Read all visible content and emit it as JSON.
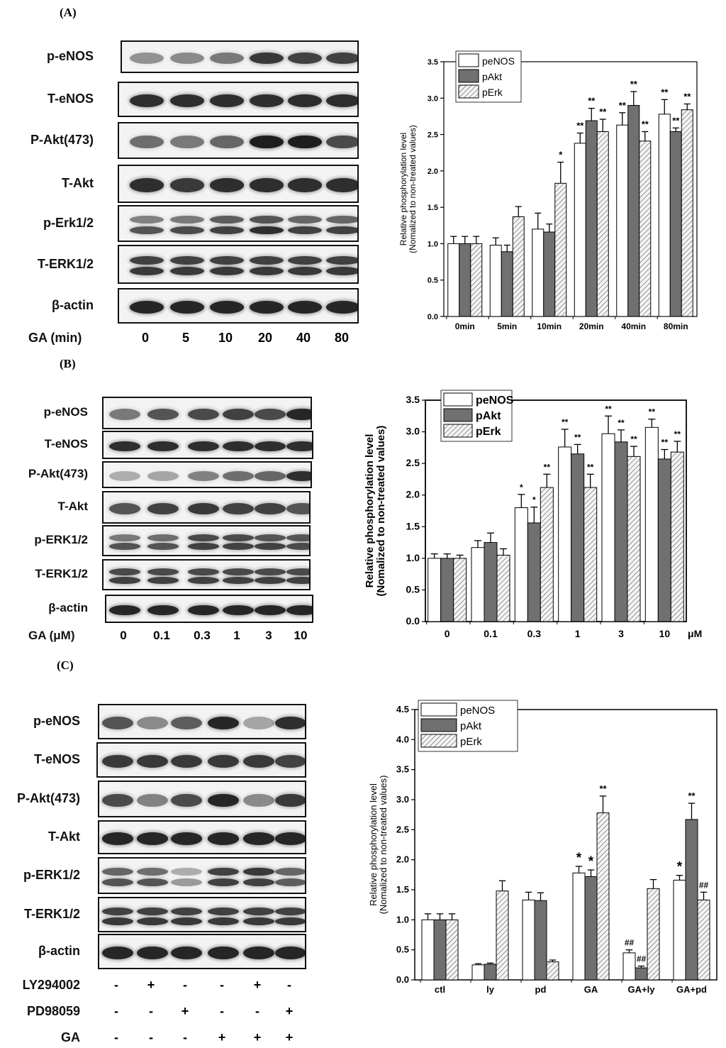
{
  "panels": {
    "A": {
      "label": "(A)",
      "blot_labels": [
        "p-eNOS",
        "T-eNOS",
        "P-Akt(473)",
        "T-Akt",
        "p-Erk1/2",
        "T-ERK1/2",
        "β-actin"
      ],
      "axis_caption": "GA  (min)",
      "lane_labels": [
        "0",
        "5",
        "10",
        "20",
        "40",
        "80"
      ]
    },
    "B": {
      "label": "(B)",
      "blot_labels": [
        "p-eNOS",
        "T-eNOS",
        "P-Akt(473)",
        "T-Akt",
        "p-ERK1/2",
        "T-ERK1/2",
        "β-actin"
      ],
      "axis_caption": "GA (μM)",
      "lane_labels": [
        "0",
        "0.1",
        "0.3",
        "1",
        "3",
        "10"
      ]
    },
    "C": {
      "label": "(C)",
      "blot_labels": [
        "p-eNOS",
        "T-eNOS",
        "P-Akt(473)",
        "T-Akt",
        "p-ERK1/2",
        "T-ERK1/2",
        "β-actin"
      ],
      "treatments": [
        {
          "name": "LY294002",
          "signs": [
            "-",
            "+",
            "-",
            "-",
            "+",
            "-"
          ]
        },
        {
          "name": "PD98059",
          "signs": [
            "-",
            "-",
            "+",
            "-",
            "-",
            "+"
          ]
        },
        {
          "name": "GA",
          "signs": [
            "-",
            "-",
            "-",
            "+",
            "+",
            "+"
          ]
        }
      ]
    }
  },
  "colors": {
    "peNOS": "#ffffff",
    "pAkt": "#707070",
    "pErk": "#e6e6e6"
  },
  "chart_data": [
    {
      "type": "bar",
      "ylabel": "Relative phosphorylation level",
      "ylabel2": "(Nomalized to non-treated values)",
      "categories": [
        "0min",
        "5min",
        "10min",
        "20min",
        "40min",
        "80min"
      ],
      "ylim": [
        0,
        3.5
      ],
      "yticks": [
        "0.0",
        "0.5",
        "1.0",
        "1.5",
        "2.0",
        "2.5",
        "3.0",
        "3.5"
      ],
      "legend_position": "top-left",
      "series": [
        {
          "name": "peNOS",
          "values": [
            1.0,
            0.98,
            1.2,
            2.38,
            2.63,
            2.78
          ],
          "errors": [
            0.1,
            0.1,
            0.22,
            0.14,
            0.17,
            0.2
          ],
          "sig": [
            "",
            "",
            "",
            "**",
            "**",
            "**"
          ]
        },
        {
          "name": "pAkt",
          "values": [
            1.0,
            0.89,
            1.16,
            2.69,
            2.9,
            2.54
          ],
          "errors": [
            0.1,
            0.09,
            0.11,
            0.17,
            0.19,
            0.05
          ],
          "sig": [
            "",
            "",
            "",
            "**",
            "**",
            "**"
          ]
        },
        {
          "name": "pErk",
          "values": [
            1.0,
            1.37,
            1.83,
            2.54,
            2.41,
            2.84
          ],
          "errors": [
            0.1,
            0.14,
            0.29,
            0.17,
            0.13,
            0.08
          ],
          "sig": [
            "",
            "",
            "*",
            "**",
            "**",
            "**"
          ]
        }
      ]
    },
    {
      "type": "bar",
      "ylabel": "Relative phosphorylation level",
      "ylabel2": "(Nomalized to non-treated values)",
      "categories": [
        "0",
        "0.1",
        "0.3",
        "1",
        "3",
        "10"
      ],
      "unit": "μM",
      "ylim": [
        0,
        3.5
      ],
      "yticks": [
        "0.0",
        "0.5",
        "1.0",
        "1.5",
        "2.0",
        "2.5",
        "3.0",
        "3.5"
      ],
      "legend_position": "top-left",
      "series": [
        {
          "name": "peNOS",
          "values": [
            1.0,
            1.17,
            1.8,
            2.76,
            2.97,
            3.07
          ],
          "errors": [
            0.07,
            0.11,
            0.21,
            0.28,
            0.28,
            0.13
          ],
          "sig": [
            "",
            "",
            "*",
            "**",
            "**",
            "**"
          ]
        },
        {
          "name": "pAkt",
          "values": [
            1.0,
            1.25,
            1.56,
            2.65,
            2.84,
            2.57
          ],
          "errors": [
            0.07,
            0.15,
            0.25,
            0.15,
            0.19,
            0.15
          ],
          "sig": [
            "",
            "",
            "*",
            "**",
            "**",
            "**"
          ]
        },
        {
          "name": "pErk",
          "values": [
            1.0,
            1.05,
            2.12,
            2.12,
            2.61,
            2.68
          ],
          "errors": [
            0.05,
            0.1,
            0.21,
            0.21,
            0.16,
            0.17
          ],
          "sig": [
            "",
            "",
            "**",
            "**",
            "**",
            "**"
          ]
        }
      ]
    },
    {
      "type": "bar",
      "ylabel": "Relative phosphorylation level",
      "ylabel2": "(Nomalized to non-treated values)",
      "categories": [
        "ctl",
        "ly",
        "pd",
        "GA",
        "GA+ly",
        "GA+pd"
      ],
      "ylim": [
        0,
        4.5
      ],
      "yticks": [
        "0.0",
        "0.5",
        "1.0",
        "1.5",
        "2.0",
        "2.5",
        "3.0",
        "3.5",
        "4.0",
        "4.5"
      ],
      "legend_position": "top-left",
      "series": [
        {
          "name": "peNOS",
          "values": [
            1.0,
            0.25,
            1.33,
            1.78,
            0.45,
            1.66
          ],
          "errors": [
            0.1,
            0.02,
            0.13,
            0.11,
            0.05,
            0.08
          ],
          "sig": [
            "",
            "",
            "",
            "*",
            "##",
            "*"
          ]
        },
        {
          "name": "pAkt",
          "values": [
            1.0,
            0.26,
            1.32,
            1.72,
            0.2,
            2.67
          ],
          "errors": [
            0.1,
            0.02,
            0.13,
            0.11,
            0.03,
            0.27
          ],
          "sig": [
            "",
            "",
            "",
            "*",
            "##",
            "**"
          ]
        },
        {
          "name": "pErk",
          "values": [
            1.0,
            1.48,
            0.3,
            2.78,
            1.52,
            1.33
          ],
          "errors": [
            0.1,
            0.17,
            0.03,
            0.28,
            0.15,
            0.13
          ],
          "sig": [
            "",
            "",
            "",
            "**",
            "",
            "##"
          ]
        }
      ]
    }
  ]
}
